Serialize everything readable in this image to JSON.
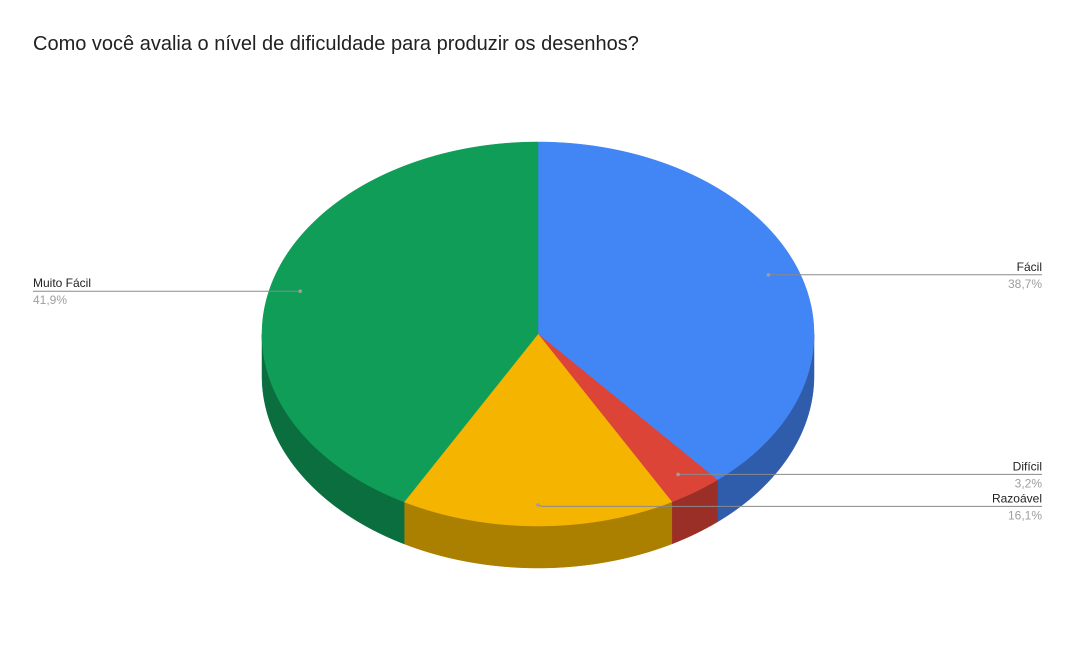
{
  "chart_data": {
    "type": "pie",
    "title": "Como você avalia o nível de dificuldade para produzir os desenhos?",
    "is_3d": true,
    "legend": "labeled",
    "slices": [
      {
        "label": "Fácil",
        "value": 38.7,
        "display": "38,7%",
        "color": "#4285f4",
        "side_color": "#2f5dab"
      },
      {
        "label": "Difícil",
        "value": 3.2,
        "display": "3,2%",
        "color": "#db4437",
        "side_color": "#9a2f27"
      },
      {
        "label": "Razoável",
        "value": 16.1,
        "display": "16,1%",
        "color": "#f4b400",
        "side_color": "#ab7f00"
      },
      {
        "label": "Muito Fácil",
        "value": 41.9,
        "display": "41,9%",
        "color": "#0f9d58",
        "side_color": "#0b6e3e"
      }
    ]
  }
}
